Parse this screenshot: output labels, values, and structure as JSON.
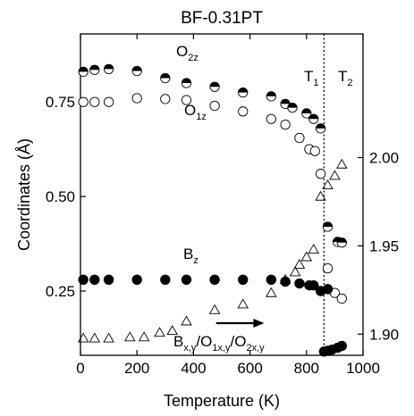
{
  "chart_data": {
    "type": "scatter",
    "title": "BF-0.31PT",
    "xlabel": "Temperature (K)",
    "ylabel": "Coordinates (Å)",
    "xlim": [
      0,
      1000
    ],
    "ylim_left": [
      0.08,
      0.93
    ],
    "ylim_right": [
      1.888,
      2.07
    ],
    "x_ticks": [
      0,
      200,
      400,
      600,
      800,
      1000
    ],
    "y_ticks_left": [
      0.25,
      0.5,
      0.75
    ],
    "y_ticks_right": [
      1.9,
      1.95,
      2.0
    ],
    "annotations": {
      "o2z": {
        "main": "O",
        "sub": "2z"
      },
      "o1z": {
        "main": "O",
        "sub": "1z"
      },
      "bz": {
        "main": "B",
        "sub": "z"
      },
      "t1": {
        "main": "T",
        "sub": "1"
      },
      "t2": {
        "main": "T",
        "sub": "2"
      },
      "bxy_parts": [
        {
          "main": "B",
          "sub": "x,y"
        },
        {
          "main": "/O",
          "sub": "1x,y"
        },
        {
          "main": "/O",
          "sub": "2x,y"
        }
      ]
    },
    "vline_x": 862,
    "arrow": {
      "x1": 480,
      "x2": 650,
      "y": 0.165
    },
    "series": [
      {
        "marker": "half-filled-circle",
        "axis": "left",
        "points": [
          [
            10,
            0.83
          ],
          [
            50,
            0.835
          ],
          [
            100,
            0.837
          ],
          [
            200,
            0.832
          ],
          [
            300,
            0.813
          ],
          [
            375,
            0.8
          ],
          [
            475,
            0.79
          ],
          [
            575,
            0.775
          ],
          [
            675,
            0.765
          ],
          [
            725,
            0.745
          ],
          [
            750,
            0.735
          ],
          [
            800,
            0.72
          ],
          [
            825,
            0.705
          ],
          [
            850,
            0.68
          ],
          [
            875,
            0.42
          ],
          [
            910,
            0.38
          ],
          [
            925,
            0.378
          ]
        ]
      },
      {
        "marker": "open-circle",
        "axis": "left",
        "points": [
          [
            10,
            0.75
          ],
          [
            50,
            0.75
          ],
          [
            100,
            0.75
          ],
          [
            200,
            0.76
          ],
          [
            300,
            0.758
          ],
          [
            375,
            0.755
          ],
          [
            475,
            0.74
          ],
          [
            575,
            0.725
          ],
          [
            675,
            0.705
          ],
          [
            725,
            0.69
          ],
          [
            775,
            0.655
          ],
          [
            810,
            0.625
          ],
          [
            830,
            0.62
          ],
          [
            850,
            0.56
          ],
          [
            875,
            0.31
          ],
          [
            900,
            0.245
          ],
          [
            925,
            0.23
          ]
        ]
      },
      {
        "marker": "filled-circle",
        "axis": "left",
        "points": [
          [
            10,
            0.28
          ],
          [
            50,
            0.28
          ],
          [
            100,
            0.28
          ],
          [
            200,
            0.28
          ],
          [
            300,
            0.28
          ],
          [
            375,
            0.28
          ],
          [
            475,
            0.28
          ],
          [
            575,
            0.28
          ],
          [
            675,
            0.28
          ],
          [
            725,
            0.275
          ],
          [
            775,
            0.27
          ],
          [
            810,
            0.265
          ],
          [
            825,
            0.265
          ],
          [
            850,
            0.25
          ],
          [
            875,
            0.255
          ],
          [
            862,
            0.09
          ],
          [
            875,
            0.092
          ],
          [
            890,
            0.095
          ],
          [
            910,
            0.1
          ],
          [
            925,
            0.105
          ]
        ]
      },
      {
        "marker": "open-triangle",
        "axis": "left",
        "points": [
          [
            10,
            0.125
          ],
          [
            50,
            0.125
          ],
          [
            100,
            0.125
          ],
          [
            175,
            0.128
          ],
          [
            225,
            0.128
          ],
          [
            280,
            0.14
          ],
          [
            325,
            0.145
          ],
          [
            375,
            0.17
          ],
          [
            475,
            0.2
          ],
          [
            575,
            0.215
          ],
          [
            675,
            0.245
          ],
          [
            725,
            0.28
          ],
          [
            760,
            0.3
          ],
          [
            775,
            0.32
          ],
          [
            800,
            0.34
          ],
          [
            825,
            0.36
          ],
          [
            850,
            0.5
          ],
          [
            875,
            0.53
          ],
          [
            900,
            0.555
          ],
          [
            925,
            0.585
          ]
        ]
      }
    ]
  }
}
